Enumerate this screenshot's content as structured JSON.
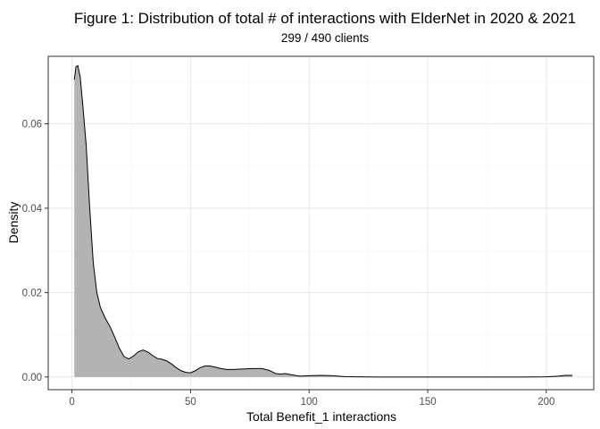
{
  "chart_data": {
    "type": "area",
    "title": "Figure 1: Distribution of total # of interactions with ElderNet in 2020 & 2021",
    "subtitle": "299 / 490 clients",
    "xlabel": "Total Benefit_1 interactions",
    "ylabel": "Density",
    "xlim": [
      -10,
      220
    ],
    "ylim": [
      -0.003,
      0.076
    ],
    "x_ticks": [
      0,
      50,
      100,
      150,
      200
    ],
    "x_tick_labels": [
      "0",
      "50",
      "100",
      "150",
      "200"
    ],
    "y_ticks": [
      0,
      0.02,
      0.04,
      0.06
    ],
    "y_tick_labels": [
      "0.00",
      "0.02",
      "0.04",
      "0.06"
    ],
    "grid": true,
    "legend": "none",
    "fill_color": "#b3b3b3",
    "line_color": "#000000",
    "series": [
      {
        "x": [
          1,
          1.7,
          2.5,
          3.5,
          4.5,
          6,
          7.5,
          9,
          10.5,
          12,
          14,
          16,
          18,
          20,
          22,
          24,
          26,
          28,
          30,
          32,
          34,
          36,
          38,
          40,
          42,
          44,
          46,
          48,
          50,
          52,
          54,
          56,
          58,
          60,
          62,
          65,
          68,
          72,
          76,
          80,
          83,
          86,
          88,
          90,
          93,
          96,
          100,
          105,
          110,
          115,
          120,
          130,
          140,
          150,
          160,
          170,
          180,
          190,
          200,
          205,
          208,
          211
        ],
        "y": [
          0.0705,
          0.0735,
          0.0738,
          0.071,
          0.065,
          0.055,
          0.04,
          0.027,
          0.02,
          0.0165,
          0.014,
          0.012,
          0.0095,
          0.0068,
          0.0048,
          0.0043,
          0.005,
          0.006,
          0.0064,
          0.0059,
          0.0051,
          0.0044,
          0.0042,
          0.0038,
          0.0031,
          0.0022,
          0.0015,
          0.0011,
          0.001,
          0.0015,
          0.0022,
          0.0026,
          0.0026,
          0.0024,
          0.0021,
          0.0018,
          0.0018,
          0.0019,
          0.002,
          0.002,
          0.0016,
          0.0008,
          0.0007,
          0.0008,
          0.0005,
          0.0002,
          0.0003,
          0.0004,
          0.0003,
          0.0001,
          5e-05,
          0.0,
          0.0,
          0.0,
          0.0,
          0.0,
          0.0,
          0.0,
          5e-05,
          0.0002,
          0.0004,
          0.0004
        ]
      }
    ]
  }
}
